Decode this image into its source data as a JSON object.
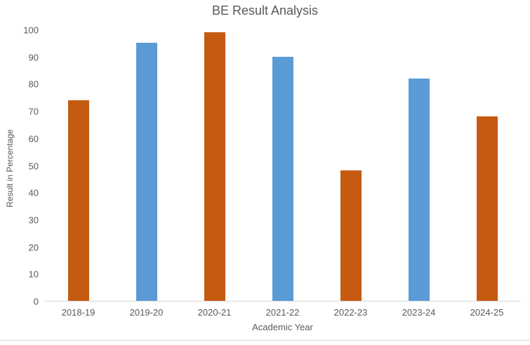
{
  "chart_data": {
    "type": "bar",
    "title": "BE Result Analysis",
    "categories": [
      "2018-19",
      "2019-20",
      "2020-21",
      "2021-22",
      "2022-23",
      "2023-24",
      "2024-25"
    ],
    "values": [
      74,
      95,
      99,
      90,
      48,
      82,
      68
    ],
    "bar_colors": [
      "#C55A11",
      "#5B9BD5",
      "#C55A11",
      "#5B9BD5",
      "#C55A11",
      "#5B9BD5",
      "#C55A11"
    ],
    "xlabel": "Academic Year",
    "ylabel": "Result in Percentage",
    "ylim": [
      0,
      100
    ],
    "yticks": [
      0,
      10,
      20,
      30,
      40,
      50,
      60,
      70,
      80,
      90,
      100
    ],
    "grid": false,
    "legend": "none"
  },
  "colors": {
    "bar_orange": "#C55A11",
    "bar_blue": "#5B9BD5",
    "text": "#595959",
    "axis_line": "#D9D9D9"
  }
}
